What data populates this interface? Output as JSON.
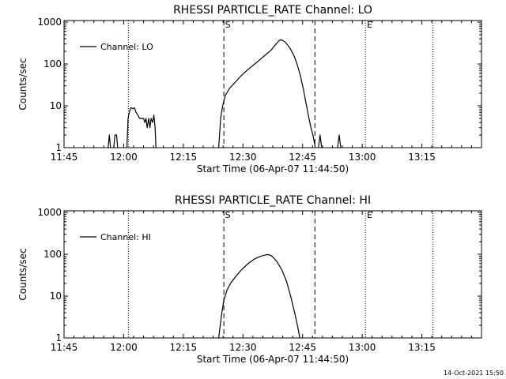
{
  "stamp": "14-Oct-2021 15:50",
  "chart_data": [
    {
      "type": "line",
      "title": "RHESSI PARTICLE_RATE Channel: LO",
      "xlabel": "Start Time (06-Apr-07 11:44:50)",
      "ylabel": "Counts/sec",
      "yscale": "log",
      "ylim": [
        1,
        1000
      ],
      "xlim_minutes_after_11_45": [
        0,
        105
      ],
      "x_ticks": [
        {
          "label": "11:45",
          "minute": 0
        },
        {
          "label": "12:00",
          "minute": 15
        },
        {
          "label": "12:15",
          "minute": 30
        },
        {
          "label": "12:30",
          "minute": 45
        },
        {
          "label": "12:45",
          "minute": 60
        },
        {
          "label": "13:00",
          "minute": 75
        },
        {
          "label": "13:15",
          "minute": 90
        }
      ],
      "y_ticks": [
        {
          "label": "1",
          "value": 1
        },
        {
          "label": "10",
          "value": 10
        },
        {
          "label": "100",
          "value": 100
        },
        {
          "label": "1000",
          "value": 1000
        }
      ],
      "legend": "Channel: LO",
      "dotted_lines_minute": [
        16.2,
        75.8,
        92.8
      ],
      "dashed_lines_minute": [
        40.2,
        63.1
      ],
      "markers": [
        {
          "label": "S",
          "minute": 40.3
        },
        {
          "label": "E",
          "minute": 76.0
        }
      ],
      "series": [
        {
          "name": "Channel: LO",
          "segments": [
            [
              [
                11.1,
                1
              ],
              [
                11.4,
                2
              ],
              [
                11.7,
                1
              ]
            ],
            [
              [
                12.5,
                1
              ],
              [
                12.8,
                2
              ],
              [
                13.2,
                2
              ],
              [
                13.5,
                1
              ]
            ],
            [
              [
                15.8,
                1
              ],
              [
                16.1,
                5
              ],
              [
                16.4,
                7
              ],
              [
                16.8,
                9
              ],
              [
                17.3,
                8.5
              ],
              [
                17.7,
                9
              ],
              [
                18.1,
                7
              ],
              [
                18.6,
                6
              ],
              [
                19.0,
                5
              ],
              [
                19.5,
                5
              ],
              [
                20.0,
                5
              ],
              [
                20.3,
                4
              ],
              [
                20.6,
                5
              ],
              [
                20.9,
                3
              ],
              [
                21.3,
                5
              ],
              [
                21.6,
                3
              ],
              [
                21.9,
                5
              ],
              [
                22.3,
                4
              ],
              [
                22.6,
                6
              ],
              [
                22.9,
                3
              ],
              [
                23.1,
                1
              ]
            ],
            [
              [
                38.9,
                1
              ],
              [
                39.4,
                5
              ],
              [
                39.9,
                10
              ],
              [
                40.6,
                18
              ],
              [
                41.6,
                26
              ],
              [
                43.0,
                36
              ],
              [
                44.5,
                52
              ],
              [
                46.0,
                70
              ],
              [
                47.5,
                92
              ],
              [
                49.0,
                120
              ],
              [
                50.5,
                160
              ],
              [
                52.0,
                210
              ],
              [
                53.2,
                290
              ],
              [
                54.2,
                370
              ],
              [
                54.8,
                375
              ],
              [
                55.8,
                320
              ],
              [
                56.8,
                240
              ],
              [
                57.8,
                160
              ],
              [
                58.6,
                100
              ],
              [
                59.4,
                55
              ],
              [
                60.2,
                25
              ],
              [
                61.0,
                10
              ],
              [
                61.6,
                5
              ],
              [
                62.1,
                3
              ],
              [
                62.6,
                2
              ],
              [
                63.2,
                1
              ]
            ],
            [
              [
                64.0,
                1
              ],
              [
                64.4,
                2
              ],
              [
                64.8,
                1
              ]
            ],
            [
              [
                68.8,
                1
              ],
              [
                69.2,
                2
              ],
              [
                69.6,
                1
              ]
            ]
          ]
        }
      ]
    },
    {
      "type": "line",
      "title": "RHESSI PARTICLE_RATE Channel: HI",
      "xlabel": "Start Time (06-Apr-07 11:44:50)",
      "ylabel": "Counts/sec",
      "yscale": "log",
      "ylim": [
        1,
        1000
      ],
      "xlim_minutes_after_11_45": [
        0,
        105
      ],
      "x_ticks": [
        {
          "label": "11:45",
          "minute": 0
        },
        {
          "label": "12:00",
          "minute": 15
        },
        {
          "label": "12:15",
          "minute": 30
        },
        {
          "label": "12:30",
          "minute": 45
        },
        {
          "label": "12:45",
          "minute": 60
        },
        {
          "label": "13:00",
          "minute": 75
        },
        {
          "label": "13:15",
          "minute": 90
        }
      ],
      "y_ticks": [
        {
          "label": "1",
          "value": 1
        },
        {
          "label": "10",
          "value": 10
        },
        {
          "label": "100",
          "value": 100
        },
        {
          "label": "1000",
          "value": 1000
        }
      ],
      "legend": "Channel: HI",
      "dotted_lines_minute": [
        16.2,
        75.8,
        92.8
      ],
      "dashed_lines_minute": [
        40.2,
        63.1
      ],
      "markers": [
        {
          "label": "S",
          "minute": 40.3
        },
        {
          "label": "E",
          "minute": 76.0
        }
      ],
      "series": [
        {
          "name": "Channel: HI",
          "segments": [
            [
              [
                38.9,
                1
              ],
              [
                39.3,
                2
              ],
              [
                39.7,
                4
              ],
              [
                40.2,
                8
              ],
              [
                41.0,
                14
              ],
              [
                42.0,
                21
              ],
              [
                43.5,
                32
              ],
              [
                45.0,
                46
              ],
              [
                46.5,
                62
              ],
              [
                48.0,
                78
              ],
              [
                49.5,
                90
              ],
              [
                50.8,
                97
              ],
              [
                51.5,
                98
              ],
              [
                52.3,
                90
              ],
              [
                53.5,
                68
              ],
              [
                54.8,
                42
              ],
              [
                56.0,
                22
              ],
              [
                57.0,
                10
              ],
              [
                58.0,
                4
              ],
              [
                58.7,
                2
              ],
              [
                59.3,
                1
              ]
            ]
          ]
        }
      ]
    }
  ]
}
